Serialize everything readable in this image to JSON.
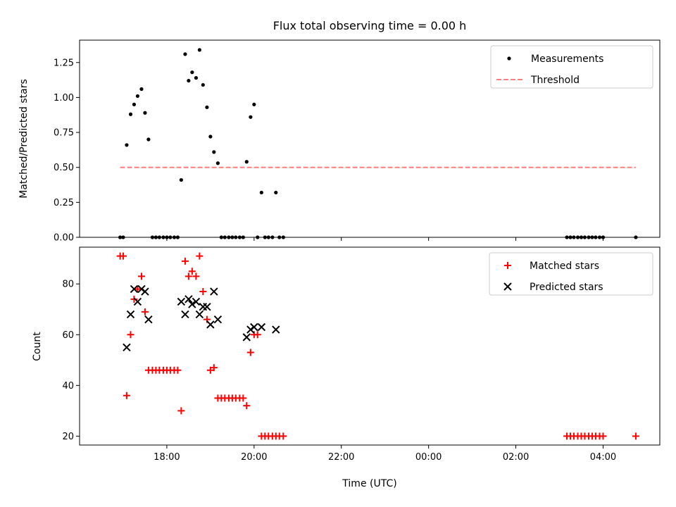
{
  "chart_data": {
    "title": "Flux total observing time = 0.00 h",
    "xlabel": "Time (UTC)",
    "x_tick_labels": [
      "18:00",
      "20:00",
      "22:00",
      "00:00",
      "02:00",
      "04:00"
    ],
    "x_ticks_hours": [
      18,
      20,
      22,
      24,
      26,
      28
    ],
    "xlim_hours": [
      16.0,
      29.3
    ],
    "subplots": [
      {
        "type": "scatter",
        "ylabel": "Matched/Predicted stars",
        "ylim": [
          0,
          1.41
        ],
        "y_ticks": [
          0.0,
          0.25,
          0.5,
          0.75,
          1.0,
          1.25
        ],
        "y_tick_labels": [
          "0.00",
          "0.25",
          "0.50",
          "0.75",
          "1.00",
          "1.25"
        ],
        "legend": {
          "position": "top-right",
          "entries": [
            "Measurements",
            "Threshold"
          ]
        },
        "series": [
          {
            "name": "Measurements",
            "marker": "dot",
            "color": "#000000",
            "points": [
              [
                16.93,
                0
              ],
              [
                17.0,
                0
              ],
              [
                17.08,
                0.66
              ],
              [
                17.17,
                0.88
              ],
              [
                17.25,
                0.95
              ],
              [
                17.33,
                1.01
              ],
              [
                17.42,
                1.06
              ],
              [
                17.5,
                0.89
              ],
              [
                17.58,
                0.7
              ],
              [
                17.67,
                0
              ],
              [
                17.75,
                0
              ],
              [
                17.83,
                0
              ],
              [
                17.92,
                0
              ],
              [
                18.0,
                0
              ],
              [
                18.08,
                0
              ],
              [
                18.17,
                0
              ],
              [
                18.25,
                0
              ],
              [
                18.33,
                0.41
              ],
              [
                18.42,
                1.31
              ],
              [
                18.5,
                1.12
              ],
              [
                18.58,
                1.18
              ],
              [
                18.67,
                1.14
              ],
              [
                18.75,
                1.34
              ],
              [
                18.83,
                1.09
              ],
              [
                18.92,
                0.93
              ],
              [
                19.0,
                0.72
              ],
              [
                19.08,
                0.61
              ],
              [
                19.17,
                0.53
              ],
              [
                19.25,
                0
              ],
              [
                19.33,
                0
              ],
              [
                19.42,
                0
              ],
              [
                19.5,
                0
              ],
              [
                19.58,
                0
              ],
              [
                19.67,
                0
              ],
              [
                19.75,
                0
              ],
              [
                19.83,
                0.54
              ],
              [
                19.92,
                0.86
              ],
              [
                20.0,
                0.95
              ],
              [
                20.08,
                0
              ],
              [
                20.17,
                0.32
              ],
              [
                20.25,
                0
              ],
              [
                20.33,
                0
              ],
              [
                20.42,
                0
              ],
              [
                20.5,
                0.32
              ],
              [
                20.58,
                0
              ],
              [
                20.67,
                0
              ],
              [
                27.17,
                0
              ],
              [
                27.25,
                0
              ],
              [
                27.33,
                0
              ],
              [
                27.42,
                0
              ],
              [
                27.5,
                0
              ],
              [
                27.58,
                0
              ],
              [
                27.67,
                0
              ],
              [
                27.75,
                0
              ],
              [
                27.83,
                0
              ],
              [
                27.92,
                0
              ],
              [
                28.0,
                0
              ],
              [
                28.75,
                0
              ]
            ]
          },
          {
            "name": "Threshold",
            "style": "dashed",
            "color": "#ff7f7f",
            "x": [
              16.93,
              28.75
            ],
            "y": [
              0.5,
              0.5
            ]
          }
        ]
      },
      {
        "type": "scatter",
        "ylabel": "Count",
        "ylim": [
          16.5,
          94.5
        ],
        "y_ticks": [
          20,
          40,
          60,
          80
        ],
        "y_tick_labels": [
          "20",
          "40",
          "60",
          "80"
        ],
        "legend": {
          "position": "top-right",
          "entries": [
            "Matched stars",
            "Predicted stars"
          ]
        },
        "series": [
          {
            "name": "Matched stars",
            "marker": "plus",
            "color": "#ff0000",
            "points": [
              [
                16.93,
                91
              ],
              [
                17.0,
                91
              ],
              [
                17.08,
                36
              ],
              [
                17.17,
                60
              ],
              [
                17.25,
                74
              ],
              [
                17.33,
                78
              ],
              [
                17.42,
                83
              ],
              [
                17.5,
                69
              ],
              [
                17.58,
                46
              ],
              [
                17.67,
                46
              ],
              [
                17.75,
                46
              ],
              [
                17.83,
                46
              ],
              [
                17.92,
                46
              ],
              [
                18.0,
                46
              ],
              [
                18.08,
                46
              ],
              [
                18.17,
                46
              ],
              [
                18.25,
                46
              ],
              [
                18.33,
                30
              ],
              [
                18.42,
                89
              ],
              [
                18.5,
                83
              ],
              [
                18.58,
                85
              ],
              [
                18.67,
                83
              ],
              [
                18.75,
                91
              ],
              [
                18.83,
                77
              ],
              [
                18.92,
                66
              ],
              [
                19.0,
                46
              ],
              [
                19.08,
                47
              ],
              [
                19.17,
                35
              ],
              [
                19.25,
                35
              ],
              [
                19.33,
                35
              ],
              [
                19.42,
                35
              ],
              [
                19.5,
                35
              ],
              [
                19.58,
                35
              ],
              [
                19.67,
                35
              ],
              [
                19.75,
                35
              ],
              [
                19.83,
                32
              ],
              [
                19.92,
                53
              ],
              [
                20.0,
                60
              ],
              [
                20.08,
                60
              ],
              [
                20.17,
                20
              ],
              [
                20.25,
                20
              ],
              [
                20.33,
                20
              ],
              [
                20.42,
                20
              ],
              [
                20.5,
                20
              ],
              [
                20.58,
                20
              ],
              [
                20.67,
                20
              ],
              [
                27.17,
                20
              ],
              [
                27.25,
                20
              ],
              [
                27.33,
                20
              ],
              [
                27.42,
                20
              ],
              [
                27.5,
                20
              ],
              [
                27.58,
                20
              ],
              [
                27.67,
                20
              ],
              [
                27.75,
                20
              ],
              [
                27.83,
                20
              ],
              [
                27.92,
                20
              ],
              [
                28.0,
                20
              ],
              [
                28.75,
                20
              ]
            ]
          },
          {
            "name": "Predicted stars",
            "marker": "x",
            "color": "#000000",
            "points": [
              [
                17.08,
                55
              ],
              [
                17.17,
                68
              ],
              [
                17.25,
                78
              ],
              [
                17.33,
                73
              ],
              [
                17.42,
                78
              ],
              [
                17.5,
                77
              ],
              [
                17.58,
                66
              ],
              [
                18.33,
                73
              ],
              [
                18.42,
                68
              ],
              [
                18.5,
                74
              ],
              [
                18.58,
                72
              ],
              [
                18.67,
                73
              ],
              [
                18.75,
                68
              ],
              [
                18.83,
                71
              ],
              [
                18.92,
                71
              ],
              [
                19.0,
                64
              ],
              [
                19.08,
                77
              ],
              [
                19.17,
                66
              ],
              [
                19.83,
                59
              ],
              [
                19.92,
                62
              ],
              [
                20.0,
                63
              ],
              [
                20.17,
                63
              ],
              [
                20.5,
                62
              ]
            ]
          }
        ]
      }
    ]
  }
}
